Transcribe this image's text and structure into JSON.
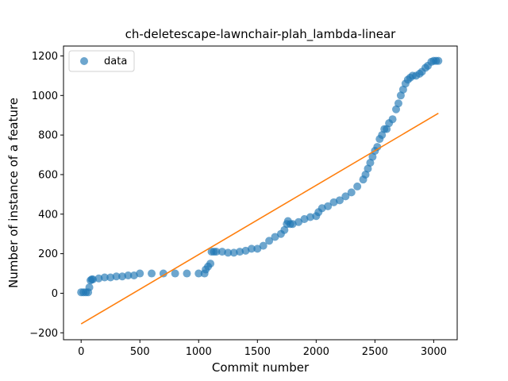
{
  "chart_data": {
    "type": "scatter",
    "title": "ch-deletescape-lawnchair-plah_lambda-linear",
    "xlabel": "Commit number",
    "ylabel": "Number of instance of a feature",
    "xlim": [
      -150,
      3200
    ],
    "ylim": [
      -235,
      1250
    ],
    "xticks": [
      0,
      500,
      1000,
      1500,
      2000,
      2500,
      3000
    ],
    "yticks": [
      -200,
      0,
      200,
      400,
      600,
      800,
      1000,
      1200
    ],
    "grid": false,
    "legend_placement": "top-left",
    "series": [
      {
        "name": "data",
        "kind": "scatter",
        "color": "#1f77b4",
        "x": [
          0,
          20,
          40,
          60,
          70,
          80,
          90,
          100,
          150,
          200,
          250,
          300,
          350,
          400,
          450,
          500,
          600,
          700,
          800,
          900,
          1000,
          1050,
          1060,
          1080,
          1100,
          1110,
          1130,
          1150,
          1200,
          1250,
          1300,
          1350,
          1400,
          1450,
          1500,
          1550,
          1600,
          1650,
          1700,
          1730,
          1750,
          1760,
          1780,
          1800,
          1850,
          1900,
          1950,
          2000,
          2020,
          2050,
          2100,
          2150,
          2200,
          2250,
          2300,
          2350,
          2400,
          2420,
          2440,
          2460,
          2480,
          2500,
          2520,
          2540,
          2560,
          2580,
          2600,
          2620,
          2650,
          2680,
          2700,
          2720,
          2740,
          2760,
          2780,
          2800,
          2820,
          2850,
          2880,
          2900,
          2930,
          2950,
          2980,
          3000,
          3020,
          3040
        ],
        "y": [
          5,
          5,
          5,
          5,
          30,
          65,
          70,
          70,
          75,
          80,
          80,
          85,
          85,
          90,
          90,
          100,
          100,
          100,
          100,
          100,
          100,
          100,
          120,
          135,
          150,
          210,
          210,
          210,
          210,
          205,
          205,
          210,
          215,
          225,
          225,
          240,
          265,
          285,
          300,
          320,
          350,
          365,
          350,
          350,
          360,
          375,
          385,
          390,
          410,
          430,
          440,
          460,
          470,
          490,
          510,
          540,
          575,
          600,
          630,
          660,
          690,
          720,
          740,
          780,
          800,
          830,
          830,
          860,
          880,
          930,
          960,
          1000,
          1030,
          1060,
          1080,
          1090,
          1100,
          1100,
          1110,
          1120,
          1140,
          1150,
          1170,
          1175,
          1175,
          1175
        ]
      },
      {
        "name": "",
        "kind": "line",
        "color": "#ff7f0e",
        "x": [
          0,
          3040
        ],
        "y": [
          -155,
          910
        ]
      }
    ]
  }
}
